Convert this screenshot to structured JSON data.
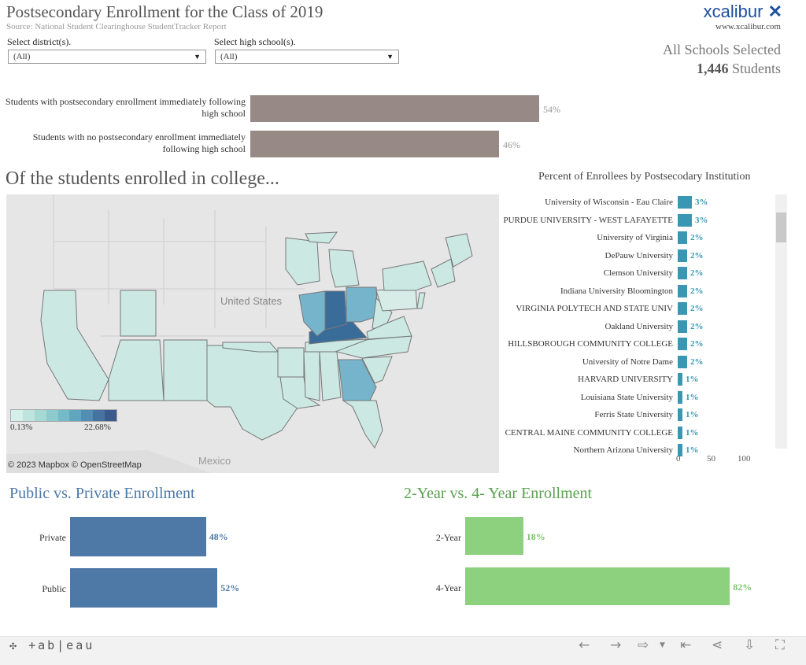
{
  "header": {
    "title": "Postsecondary Enrollment for the Class of 2019",
    "subtitle": "Source: National Student Clearinghouse StudentTracker Report",
    "logo_text": "xcalibur",
    "logo_url": "www.xcalibur.com"
  },
  "filters": {
    "district_label": "Select district(s).",
    "district_value": "(All)",
    "school_label": "Select high school(s).",
    "school_value": "(All)"
  },
  "selection": {
    "line1": "All Schools Selected",
    "count": "1,446",
    "count_suffix": "Students"
  },
  "enrollment": {
    "rows": [
      {
        "label": "Students with postsecondary enrollment immediately following high school",
        "value": 54,
        "pct": "54%"
      },
      {
        "label": "Students with no postsecondary enrollment immediately following high school",
        "value": 46,
        "pct": "46%"
      }
    ]
  },
  "section_heading": "Of the students enrolled in college...",
  "map": {
    "country_label": "United States",
    "mexico_label": "Mexico",
    "legend_min": "0.13%",
    "legend_max": "22.68%",
    "credit": "© 2023 Mapbox © OpenStreetMap",
    "colors": {
      "low": "#c9e8e1",
      "mid": "#76b4cc",
      "high": "#3a6c9a"
    }
  },
  "institutions": {
    "title": "Percent of Enrollees by Postsecodary Institution",
    "rows": [
      {
        "name": "University of Wisconsin - Eau Claire",
        "value": 3,
        "pct": "3%"
      },
      {
        "name": "PURDUE UNIVERSITY - WEST LAFAYETTE",
        "value": 3,
        "pct": "3%"
      },
      {
        "name": "University of Virginia",
        "value": 2,
        "pct": "2%"
      },
      {
        "name": "DePauw University",
        "value": 2,
        "pct": "2%"
      },
      {
        "name": "Clemson University",
        "value": 2,
        "pct": "2%"
      },
      {
        "name": "Indiana University Bloomington",
        "value": 2,
        "pct": "2%"
      },
      {
        "name": "VIRGINIA POLYTECH AND STATE UNIV",
        "value": 2,
        "pct": "2%"
      },
      {
        "name": "Oakland University",
        "value": 2,
        "pct": "2%"
      },
      {
        "name": "HILLSBOROUGH COMMUNITY COLLEGE",
        "value": 2,
        "pct": "2%"
      },
      {
        "name": "University of Notre Dame",
        "value": 2,
        "pct": "2%"
      },
      {
        "name": "HARVARD UNIVERSITY",
        "value": 1,
        "pct": "1%"
      },
      {
        "name": "Louisiana State University",
        "value": 1,
        "pct": "1%"
      },
      {
        "name": "Ferris State University",
        "value": 1,
        "pct": "1%"
      },
      {
        "name": "CENTRAL MAINE COMMUNITY COLLEGE",
        "value": 1,
        "pct": "1%"
      },
      {
        "name": "Northern Arizona University",
        "value": 1,
        "pct": "1%"
      }
    ],
    "axis_ticks": [
      "0",
      "50",
      "100"
    ]
  },
  "public_private": {
    "title": "Public vs. Private Enrollment",
    "rows": [
      {
        "label": "Private",
        "value": 48,
        "pct": "48%"
      },
      {
        "label": "Public",
        "value": 52,
        "pct": "52%"
      }
    ]
  },
  "two_four": {
    "title": "2-Year vs. 4- Year Enrollment",
    "rows": [
      {
        "label": "2-Year",
        "value": 18,
        "pct": "18%"
      },
      {
        "label": "4-Year",
        "value": 82,
        "pct": "82%"
      }
    ]
  },
  "footer": {
    "brand": "+ab|eau",
    "icons": [
      "undo-icon",
      "redo-icon",
      "revert-icon",
      "reset-icon",
      "share-icon",
      "download-icon",
      "fullscreen-icon"
    ]
  }
}
